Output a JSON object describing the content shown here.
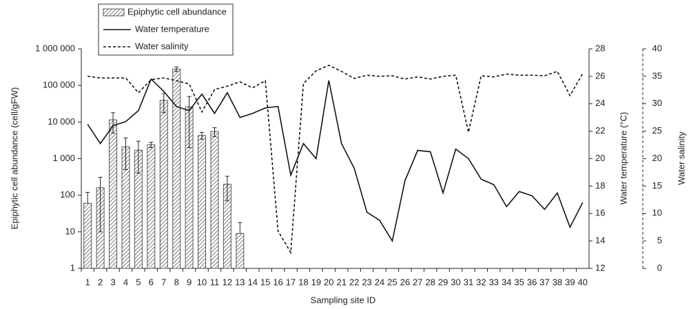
{
  "chart_data": {
    "type": "bar",
    "x_label": "Sampling site ID",
    "y_label": "Epiphytic cell abundance (cell/gFW)",
    "y2_label": "Water temperature (°C)",
    "y3_label": "Water salinity",
    "categories": [
      "1",
      "2",
      "3",
      "4",
      "5",
      "6",
      "7",
      "8",
      "9",
      "10",
      "11",
      "12",
      "13",
      "14",
      "15",
      "16",
      "17",
      "18",
      "19",
      "20",
      "21",
      "22",
      "23",
      "24",
      "25",
      "26",
      "27",
      "28",
      "29",
      "30",
      "31",
      "32",
      "33",
      "34",
      "35",
      "36",
      "37",
      "38",
      "39",
      "40"
    ],
    "ylim": [
      1,
      1000000
    ],
    "log_y": true,
    "yticks": [
      1,
      10,
      100,
      {
        "value": 1000,
        "label": "1 000"
      },
      {
        "value": 10000,
        "label": "10 000"
      },
      {
        "value": 100000,
        "label": "100 000"
      },
      {
        "value": 1000000,
        "label": "1 000 000"
      }
    ],
    "y2lim": [
      12,
      28
    ],
    "y2ticks": [
      12,
      14,
      16,
      18,
      20,
      22,
      24,
      26,
      28
    ],
    "y3lim": [
      0,
      40
    ],
    "y3ticks": [
      0,
      5,
      10,
      15,
      20,
      25,
      30,
      35,
      40
    ],
    "legend": "top-left",
    "series": [
      {
        "name": "Epiphytic cell abundance",
        "type": "bar",
        "color": "#555555",
        "values": [
          60,
          160,
          11500,
          2100,
          1700,
          2400,
          39000,
          280000,
          26000,
          4300,
          5500,
          200,
          9,
          null,
          null,
          null,
          null,
          null,
          null,
          null,
          null,
          null,
          null,
          null,
          null,
          null,
          null,
          null,
          null,
          null,
          null,
          null,
          null,
          null,
          null,
          null,
          null,
          null,
          null,
          null
        ],
        "errors": [
          60,
          150,
          6500,
          1600,
          1300,
          400,
          21000,
          40000,
          24000,
          900,
          1500,
          130,
          9,
          null,
          null,
          null,
          null,
          null,
          null,
          null,
          null,
          null,
          null,
          null,
          null,
          null,
          null,
          null,
          null,
          null,
          null,
          null,
          null,
          null,
          null,
          null,
          null,
          null,
          null,
          null
        ]
      },
      {
        "name": "Water temperature",
        "type": "line",
        "axis": "y2",
        "color": "#111111",
        "dashed": false,
        "values": [
          22.5,
          21.1,
          22.4,
          22.7,
          23.5,
          25.8,
          24.9,
          23.8,
          23.5,
          24.7,
          23.3,
          24.8,
          23.0,
          23.3,
          23.7,
          23.8,
          18.8,
          21.1,
          20.0,
          25.7,
          21.1,
          19.3,
          16.1,
          15.5,
          14.0,
          18.4,
          20.6,
          20.5,
          17.5,
          20.7,
          20.0,
          18.5,
          18.1,
          16.5,
          17.6,
          17.3,
          16.3,
          17.5,
          15.0,
          16.8
        ]
      },
      {
        "name": "Water salinity",
        "type": "line",
        "axis": "y3",
        "color": "#111111",
        "dashed": true,
        "values": [
          35.0,
          34.7,
          34.7,
          34.7,
          32.0,
          34.4,
          34.7,
          34.2,
          33.6,
          28.5,
          32.6,
          33.2,
          34.0,
          32.9,
          34.2,
          6.8,
          2.9,
          33.7,
          36.0,
          37.0,
          35.9,
          34.6,
          35.2,
          35.0,
          35.1,
          34.5,
          34.9,
          34.5,
          35.0,
          35.2,
          24.8,
          35.1,
          34.9,
          35.4,
          35.2,
          35.2,
          35.1,
          35.9,
          31.5,
          35.5
        ]
      }
    ]
  }
}
